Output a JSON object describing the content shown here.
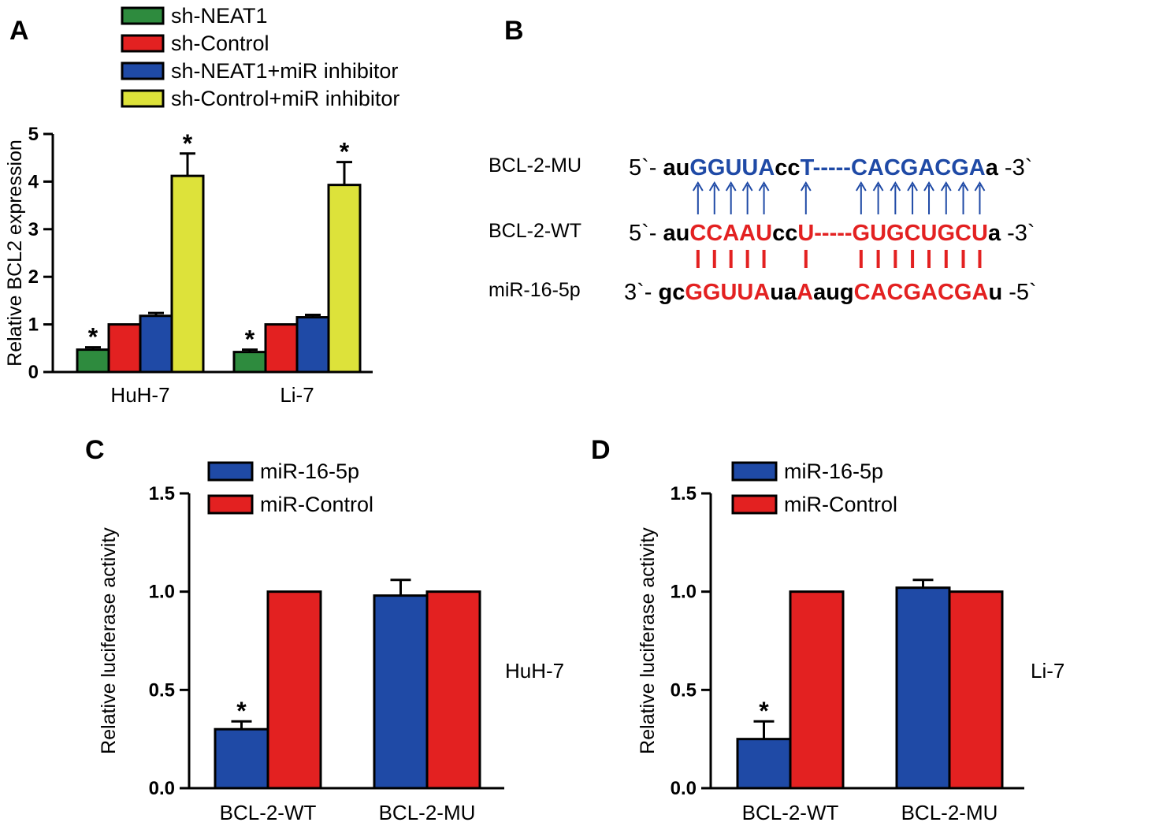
{
  "chart_data": [
    {
      "panel": "A",
      "type": "bar",
      "ylabel": "Relative BCL2 expression",
      "ylim": [
        0,
        5
      ],
      "yticks": [
        "0",
        "1",
        "2",
        "3",
        "4",
        "5"
      ],
      "categories": [
        "HuH-7",
        "Li-7"
      ],
      "series": [
        {
          "name": "sh-NEAT1",
          "color": "#2e8b3e",
          "values": [
            0.47,
            0.42
          ],
          "errors": [
            0.05,
            0.05
          ],
          "sig": [
            "*",
            "*"
          ]
        },
        {
          "name": "sh-Control",
          "color": "#e32121",
          "values": [
            1.0,
            1.0
          ],
          "errors": [
            0,
            0
          ],
          "sig": [
            "",
            ""
          ]
        },
        {
          "name": "sh-NEAT1+miR inhibitor",
          "color": "#1f4aa6",
          "values": [
            1.18,
            1.15
          ],
          "errors": [
            0.06,
            0.05
          ],
          "sig": [
            "",
            ""
          ]
        },
        {
          "name": "sh-Control+miR inhibitor",
          "color": "#dde23a",
          "values": [
            4.12,
            3.93
          ],
          "errors": [
            0.47,
            0.48
          ],
          "sig": [
            "*",
            "*"
          ]
        }
      ]
    },
    {
      "panel": "C",
      "type": "bar",
      "ylabel": "Relative luciferase activity",
      "ylim": [
        0,
        1.5
      ],
      "yticks": [
        "0.0",
        "0.5",
        "1.0",
        "1.5"
      ],
      "categories": [
        "BCL-2-WT",
        "BCL-2-MU"
      ],
      "side_label": "HuH-7",
      "series": [
        {
          "name": "miR-16-5p",
          "color": "#1f4aa6",
          "values": [
            0.3,
            0.98
          ],
          "errors": [
            0.04,
            0.08
          ],
          "sig": [
            "*",
            ""
          ]
        },
        {
          "name": "miR-Control",
          "color": "#e32121",
          "values": [
            1.0,
            1.0
          ],
          "errors": [
            0,
            0
          ],
          "sig": [
            "",
            ""
          ]
        }
      ]
    },
    {
      "panel": "D",
      "type": "bar",
      "ylabel": "Relative luciferase activity",
      "ylim": [
        0,
        1.5
      ],
      "yticks": [
        "0.0",
        "0.5",
        "1.0",
        "1.5"
      ],
      "categories": [
        "BCL-2-WT",
        "BCL-2-MU"
      ],
      "side_label": "Li-7",
      "series": [
        {
          "name": "miR-16-5p",
          "color": "#1f4aa6",
          "values": [
            0.25,
            1.02
          ],
          "errors": [
            0.09,
            0.04
          ],
          "sig": [
            "*",
            ""
          ]
        },
        {
          "name": "miR-Control",
          "color": "#e32121",
          "values": [
            1.0,
            1.0
          ],
          "errors": [
            0,
            0
          ],
          "sig": [
            "",
            ""
          ]
        }
      ]
    }
  ],
  "panel_b": {
    "letter": "B",
    "rows": [
      {
        "name": "BCL-2-MU",
        "segments": [
          {
            "t": "5`- ",
            "c": "plain"
          },
          {
            "t": "au",
            "c": "black"
          },
          {
            "t": "GGUUA",
            "c": "blue"
          },
          {
            "t": "cc",
            "c": "black"
          },
          {
            "t": "T-----CACGACGA",
            "c": "blue"
          },
          {
            "t": "a",
            "c": "black"
          },
          {
            "t": " -3`",
            "c": "plain"
          }
        ]
      },
      {
        "name": "BCL-2-WT",
        "segments": [
          {
            "t": "5`- ",
            "c": "plain"
          },
          {
            "t": "au",
            "c": "black"
          },
          {
            "t": "CCAAU",
            "c": "red"
          },
          {
            "t": "cc",
            "c": "black"
          },
          {
            "t": "U-----GUGCUGCU",
            "c": "red"
          },
          {
            "t": "a",
            "c": "black"
          },
          {
            "t": " -3`",
            "c": "plain"
          }
        ]
      },
      {
        "name": "miR-16-5p",
        "segments": [
          {
            "t": "3`- ",
            "c": "plain"
          },
          {
            "t": "gc",
            "c": "black"
          },
          {
            "t": "GGUUA",
            "c": "red"
          },
          {
            "t": "ua",
            "c": "black"
          },
          {
            "t": "A",
            "c": "red"
          },
          {
            "t": "aug",
            "c": "black"
          },
          {
            "t": "CACGACGA",
            "c": "red"
          },
          {
            "t": "u",
            "c": "black"
          },
          {
            "t": " -5`",
            "c": "plain"
          }
        ]
      }
    ],
    "colors": {
      "blue": "#1f4aa6",
      "red": "#e32121",
      "black": "#000000",
      "plain": "#000000"
    }
  }
}
